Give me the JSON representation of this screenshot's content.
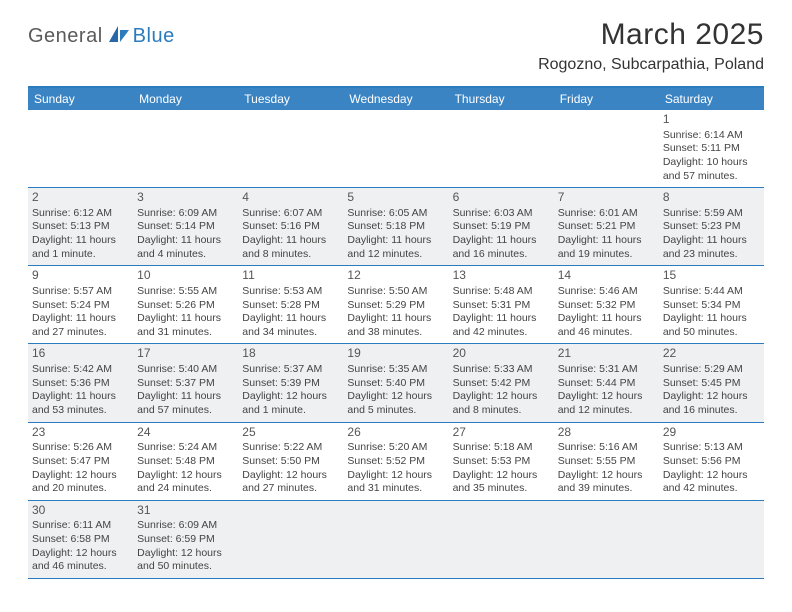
{
  "logo": {
    "part1": "General",
    "part2": "Blue"
  },
  "title": "March 2025",
  "location": "Rogozno, Subcarpathia, Poland",
  "colors": {
    "header_bg": "#3b84c4",
    "border": "#2b7bbf",
    "shade": "#eef0f1",
    "text": "#444444",
    "logo_gray": "#5a5a5a",
    "logo_blue": "#2b7bbf"
  },
  "daynames": [
    "Sunday",
    "Monday",
    "Tuesday",
    "Wednesday",
    "Thursday",
    "Friday",
    "Saturday"
  ],
  "weeks": [
    [
      {
        "day": "",
        "sunrise": "",
        "sunset": "",
        "daylight": ""
      },
      {
        "day": "",
        "sunrise": "",
        "sunset": "",
        "daylight": ""
      },
      {
        "day": "",
        "sunrise": "",
        "sunset": "",
        "daylight": ""
      },
      {
        "day": "",
        "sunrise": "",
        "sunset": "",
        "daylight": ""
      },
      {
        "day": "",
        "sunrise": "",
        "sunset": "",
        "daylight": ""
      },
      {
        "day": "",
        "sunrise": "",
        "sunset": "",
        "daylight": ""
      },
      {
        "day": "1",
        "sunrise": "Sunrise: 6:14 AM",
        "sunset": "Sunset: 5:11 PM",
        "daylight": "Daylight: 10 hours and 57 minutes."
      }
    ],
    [
      {
        "day": "2",
        "sunrise": "Sunrise: 6:12 AM",
        "sunset": "Sunset: 5:13 PM",
        "daylight": "Daylight: 11 hours and 1 minute."
      },
      {
        "day": "3",
        "sunrise": "Sunrise: 6:09 AM",
        "sunset": "Sunset: 5:14 PM",
        "daylight": "Daylight: 11 hours and 4 minutes."
      },
      {
        "day": "4",
        "sunrise": "Sunrise: 6:07 AM",
        "sunset": "Sunset: 5:16 PM",
        "daylight": "Daylight: 11 hours and 8 minutes."
      },
      {
        "day": "5",
        "sunrise": "Sunrise: 6:05 AM",
        "sunset": "Sunset: 5:18 PM",
        "daylight": "Daylight: 11 hours and 12 minutes."
      },
      {
        "day": "6",
        "sunrise": "Sunrise: 6:03 AM",
        "sunset": "Sunset: 5:19 PM",
        "daylight": "Daylight: 11 hours and 16 minutes."
      },
      {
        "day": "7",
        "sunrise": "Sunrise: 6:01 AM",
        "sunset": "Sunset: 5:21 PM",
        "daylight": "Daylight: 11 hours and 19 minutes."
      },
      {
        "day": "8",
        "sunrise": "Sunrise: 5:59 AM",
        "sunset": "Sunset: 5:23 PM",
        "daylight": "Daylight: 11 hours and 23 minutes."
      }
    ],
    [
      {
        "day": "9",
        "sunrise": "Sunrise: 5:57 AM",
        "sunset": "Sunset: 5:24 PM",
        "daylight": "Daylight: 11 hours and 27 minutes."
      },
      {
        "day": "10",
        "sunrise": "Sunrise: 5:55 AM",
        "sunset": "Sunset: 5:26 PM",
        "daylight": "Daylight: 11 hours and 31 minutes."
      },
      {
        "day": "11",
        "sunrise": "Sunrise: 5:53 AM",
        "sunset": "Sunset: 5:28 PM",
        "daylight": "Daylight: 11 hours and 34 minutes."
      },
      {
        "day": "12",
        "sunrise": "Sunrise: 5:50 AM",
        "sunset": "Sunset: 5:29 PM",
        "daylight": "Daylight: 11 hours and 38 minutes."
      },
      {
        "day": "13",
        "sunrise": "Sunrise: 5:48 AM",
        "sunset": "Sunset: 5:31 PM",
        "daylight": "Daylight: 11 hours and 42 minutes."
      },
      {
        "day": "14",
        "sunrise": "Sunrise: 5:46 AM",
        "sunset": "Sunset: 5:32 PM",
        "daylight": "Daylight: 11 hours and 46 minutes."
      },
      {
        "day": "15",
        "sunrise": "Sunrise: 5:44 AM",
        "sunset": "Sunset: 5:34 PM",
        "daylight": "Daylight: 11 hours and 50 minutes."
      }
    ],
    [
      {
        "day": "16",
        "sunrise": "Sunrise: 5:42 AM",
        "sunset": "Sunset: 5:36 PM",
        "daylight": "Daylight: 11 hours and 53 minutes."
      },
      {
        "day": "17",
        "sunrise": "Sunrise: 5:40 AM",
        "sunset": "Sunset: 5:37 PM",
        "daylight": "Daylight: 11 hours and 57 minutes."
      },
      {
        "day": "18",
        "sunrise": "Sunrise: 5:37 AM",
        "sunset": "Sunset: 5:39 PM",
        "daylight": "Daylight: 12 hours and 1 minute."
      },
      {
        "day": "19",
        "sunrise": "Sunrise: 5:35 AM",
        "sunset": "Sunset: 5:40 PM",
        "daylight": "Daylight: 12 hours and 5 minutes."
      },
      {
        "day": "20",
        "sunrise": "Sunrise: 5:33 AM",
        "sunset": "Sunset: 5:42 PM",
        "daylight": "Daylight: 12 hours and 8 minutes."
      },
      {
        "day": "21",
        "sunrise": "Sunrise: 5:31 AM",
        "sunset": "Sunset: 5:44 PM",
        "daylight": "Daylight: 12 hours and 12 minutes."
      },
      {
        "day": "22",
        "sunrise": "Sunrise: 5:29 AM",
        "sunset": "Sunset: 5:45 PM",
        "daylight": "Daylight: 12 hours and 16 minutes."
      }
    ],
    [
      {
        "day": "23",
        "sunrise": "Sunrise: 5:26 AM",
        "sunset": "Sunset: 5:47 PM",
        "daylight": "Daylight: 12 hours and 20 minutes."
      },
      {
        "day": "24",
        "sunrise": "Sunrise: 5:24 AM",
        "sunset": "Sunset: 5:48 PM",
        "daylight": "Daylight: 12 hours and 24 minutes."
      },
      {
        "day": "25",
        "sunrise": "Sunrise: 5:22 AM",
        "sunset": "Sunset: 5:50 PM",
        "daylight": "Daylight: 12 hours and 27 minutes."
      },
      {
        "day": "26",
        "sunrise": "Sunrise: 5:20 AM",
        "sunset": "Sunset: 5:52 PM",
        "daylight": "Daylight: 12 hours and 31 minutes."
      },
      {
        "day": "27",
        "sunrise": "Sunrise: 5:18 AM",
        "sunset": "Sunset: 5:53 PM",
        "daylight": "Daylight: 12 hours and 35 minutes."
      },
      {
        "day": "28",
        "sunrise": "Sunrise: 5:16 AM",
        "sunset": "Sunset: 5:55 PM",
        "daylight": "Daylight: 12 hours and 39 minutes."
      },
      {
        "day": "29",
        "sunrise": "Sunrise: 5:13 AM",
        "sunset": "Sunset: 5:56 PM",
        "daylight": "Daylight: 12 hours and 42 minutes."
      }
    ],
    [
      {
        "day": "30",
        "sunrise": "Sunrise: 6:11 AM",
        "sunset": "Sunset: 6:58 PM",
        "daylight": "Daylight: 12 hours and 46 minutes."
      },
      {
        "day": "31",
        "sunrise": "Sunrise: 6:09 AM",
        "sunset": "Sunset: 6:59 PM",
        "daylight": "Daylight: 12 hours and 50 minutes."
      },
      {
        "day": "",
        "sunrise": "",
        "sunset": "",
        "daylight": ""
      },
      {
        "day": "",
        "sunrise": "",
        "sunset": "",
        "daylight": ""
      },
      {
        "day": "",
        "sunrise": "",
        "sunset": "",
        "daylight": ""
      },
      {
        "day": "",
        "sunrise": "",
        "sunset": "",
        "daylight": ""
      },
      {
        "day": "",
        "sunrise": "",
        "sunset": "",
        "daylight": ""
      }
    ]
  ]
}
